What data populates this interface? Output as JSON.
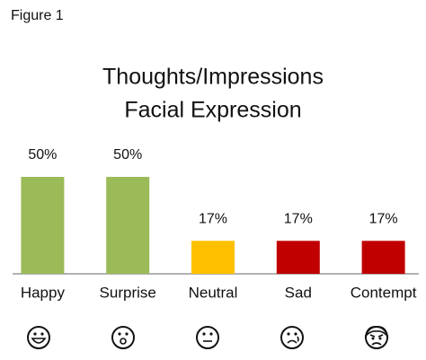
{
  "figure_label": "Figure 1",
  "chart_data": {
    "type": "bar",
    "title": [
      "Thoughts/Impressions",
      "Facial Expression"
    ],
    "categories": [
      "Happy",
      "Surprise",
      "Neutral",
      "Sad",
      "Contempt"
    ],
    "values": [
      50,
      50,
      17,
      17,
      17
    ],
    "value_labels": [
      "50%",
      "50%",
      "17%",
      "17%",
      "17%"
    ],
    "colors": [
      "#9bbb59",
      "#9bbb59",
      "#ffc000",
      "#c00000",
      "#c00000"
    ]
  }
}
